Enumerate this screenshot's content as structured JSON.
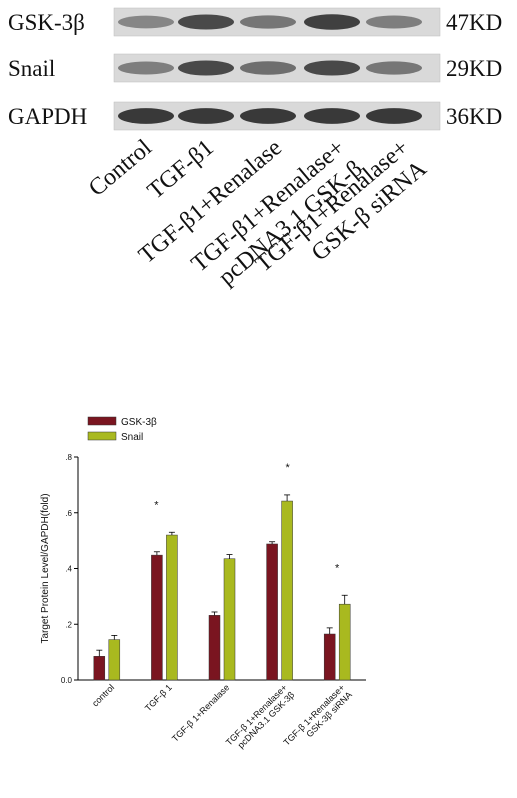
{
  "blot": {
    "rows": [
      {
        "protein": "GSK-3β",
        "size": "47KD",
        "intensity": [
          0.45,
          0.85,
          0.55,
          0.9,
          0.5
        ]
      },
      {
        "protein": "Snail",
        "size": "29KD",
        "intensity": [
          0.5,
          0.85,
          0.6,
          0.85,
          0.55
        ]
      },
      {
        "protein": "GAPDH",
        "size": "36KD",
        "intensity": [
          0.95,
          0.95,
          0.95,
          0.95,
          0.95
        ]
      }
    ],
    "lanes": [
      {
        "line1": "Control",
        "line2": ""
      },
      {
        "line1": "TGF-β1",
        "line2": ""
      },
      {
        "line1": "TGF-β1+Renalase",
        "line2": ""
      },
      {
        "line1": "TGF-β1+Renalase+",
        "line2": "pcDNA3.1 GSK-β"
      },
      {
        "line1": "TGF-β1+Renalase+",
        "line2": "GSK-β siRNA"
      }
    ]
  },
  "chart_data": {
    "type": "bar",
    "title": "",
    "xlabel": "",
    "ylabel": "Target Protein Level/GAPDH(fold)",
    "ylim": [
      0,
      0.8
    ],
    "yticks": [
      0,
      0.2,
      0.4,
      0.6,
      0.8
    ],
    "ytick_labels": [
      "0.0",
      ".2",
      ".4",
      ".6",
      ".8"
    ],
    "categories": [
      {
        "line1": "control",
        "line2": ""
      },
      {
        "line1": "TGF-β 1",
        "line2": ""
      },
      {
        "line1": "TGF-β 1+Renalase",
        "line2": ""
      },
      {
        "line1": "TGF-β 1+Renalase+",
        "line2": "pcDNA3.1 GSK-3β"
      },
      {
        "line1": "TGF-β 1+Renalase+",
        "line2": "GSK-3β siRNA"
      }
    ],
    "series": [
      {
        "name": "GSK-3β",
        "color": "#7a1520",
        "values": [
          0.085,
          0.448,
          0.232,
          0.488,
          0.165
        ],
        "errors": [
          0.022,
          0.012,
          0.012,
          0.008,
          0.022
        ]
      },
      {
        "name": "Snail",
        "color": "#a9b91f",
        "values": [
          0.145,
          0.52,
          0.435,
          0.642,
          0.272
        ],
        "errors": [
          0.015,
          0.01,
          0.015,
          0.022,
          0.032
        ]
      }
    ],
    "significance": [
      "",
      "*",
      "",
      "*",
      "*"
    ],
    "legend_position": "top-left",
    "grid": false
  }
}
